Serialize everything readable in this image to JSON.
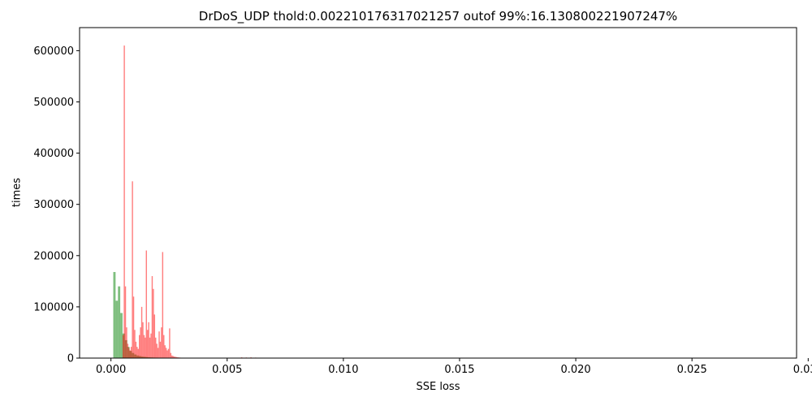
{
  "chart_data": {
    "type": "bar",
    "title": "DrDoS_UDP thold:0.002210176317021257 outof 99%:16.130800221907247%",
    "xlabel": "SSE loss",
    "ylabel": "times",
    "xlim": [
      -0.00135,
      0.0295
    ],
    "ylim": [
      0,
      645000
    ],
    "xticks": [
      0.0,
      0.005,
      0.01,
      0.015,
      0.02,
      0.025,
      0.03
    ],
    "xtick_labels": [
      "0.000",
      "0.005",
      "0.010",
      "0.015",
      "0.020",
      "0.025",
      "0.030"
    ],
    "yticks": [
      0,
      100000,
      200000,
      300000,
      400000,
      500000,
      600000
    ],
    "ytick_labels": [
      "0",
      "100000",
      "200000",
      "300000",
      "400000",
      "500000",
      "600000"
    ],
    "grid": false,
    "series": [
      {
        "color": "#008000",
        "opacity": 0.5,
        "bin_width": 0.0001,
        "bins": [
          [
            0.0001,
            168000
          ],
          [
            0.0002,
            112000
          ],
          [
            0.0003,
            140000
          ],
          [
            0.0004,
            88000
          ],
          [
            0.0005,
            48000
          ],
          [
            0.0006,
            35000
          ],
          [
            0.0007,
            22000
          ],
          [
            0.0008,
            14000
          ],
          [
            0.0009,
            10000
          ],
          [
            0.001,
            7000
          ],
          [
            0.0011,
            5000
          ],
          [
            0.0012,
            4000
          ],
          [
            0.0013,
            3000
          ],
          [
            0.0014,
            2500
          ],
          [
            0.0015,
            2000
          ],
          [
            0.0016,
            1500
          ],
          [
            0.0017,
            1200
          ],
          [
            0.0018,
            1000
          ],
          [
            0.0019,
            900
          ],
          [
            0.002,
            800
          ],
          [
            0.0021,
            700
          ],
          [
            0.0022,
            600
          ],
          [
            0.0023,
            500
          ],
          [
            0.0024,
            500
          ],
          [
            0.0025,
            400
          ],
          [
            0.0026,
            400
          ],
          [
            0.0027,
            300
          ],
          [
            0.0028,
            300
          ],
          [
            0.0029,
            200
          ],
          [
            0.003,
            200
          ],
          [
            0.0031,
            150
          ],
          [
            0.0032,
            100
          ]
        ]
      },
      {
        "color": "#ff0000",
        "opacity": 0.5,
        "bin_width": 5e-05,
        "bins": [
          [
            0.0005,
            45000
          ],
          [
            0.00055,
            610000
          ],
          [
            0.0006,
            140000
          ],
          [
            0.00065,
            60000
          ],
          [
            0.0007,
            28000
          ],
          [
            0.00075,
            20000
          ],
          [
            0.0008,
            15000
          ],
          [
            0.00085,
            22000
          ],
          [
            0.0009,
            345000
          ],
          [
            0.00095,
            120000
          ],
          [
            0.001,
            55000
          ],
          [
            0.00105,
            32000
          ],
          [
            0.0011,
            22000
          ],
          [
            0.00115,
            18000
          ],
          [
            0.0012,
            45000
          ],
          [
            0.00125,
            60000
          ],
          [
            0.0013,
            100000
          ],
          [
            0.00135,
            70000
          ],
          [
            0.0014,
            45000
          ],
          [
            0.00145,
            40000
          ],
          [
            0.0015,
            210000
          ],
          [
            0.00155,
            55000
          ],
          [
            0.0016,
            70000
          ],
          [
            0.00165,
            40000
          ],
          [
            0.0017,
            48000
          ],
          [
            0.00175,
            160000
          ],
          [
            0.0018,
            135000
          ],
          [
            0.00185,
            85000
          ],
          [
            0.0019,
            40000
          ],
          [
            0.00195,
            28000
          ],
          [
            0.002,
            20000
          ],
          [
            0.00205,
            52000
          ],
          [
            0.0021,
            32000
          ],
          [
            0.00215,
            60000
          ],
          [
            0.0022,
            207000
          ],
          [
            0.00225,
            45000
          ],
          [
            0.0023,
            25000
          ],
          [
            0.00235,
            20000
          ],
          [
            0.0024,
            15000
          ],
          [
            0.00245,
            18000
          ],
          [
            0.0025,
            58000
          ],
          [
            0.00255,
            10000
          ],
          [
            0.0026,
            5000
          ],
          [
            0.00265,
            4000
          ],
          [
            0.0027,
            3000
          ],
          [
            0.00275,
            2500
          ],
          [
            0.0028,
            2000
          ],
          [
            0.00285,
            1500
          ],
          [
            0.0029,
            1200
          ],
          [
            0.00295,
            1000
          ],
          [
            0.003,
            800
          ],
          [
            0.0031,
            600
          ],
          [
            0.0032,
            400
          ],
          [
            0.0034,
            300
          ],
          [
            0.0036,
            200
          ],
          [
            0.004,
            100
          ],
          [
            0.0045,
            100
          ],
          [
            0.005,
            100
          ],
          [
            0.0056,
            1500
          ],
          [
            0.0058,
            1200
          ],
          [
            0.006,
            1500
          ],
          [
            0.0062,
            1000
          ],
          [
            0.0064,
            500
          ]
        ]
      }
    ]
  }
}
